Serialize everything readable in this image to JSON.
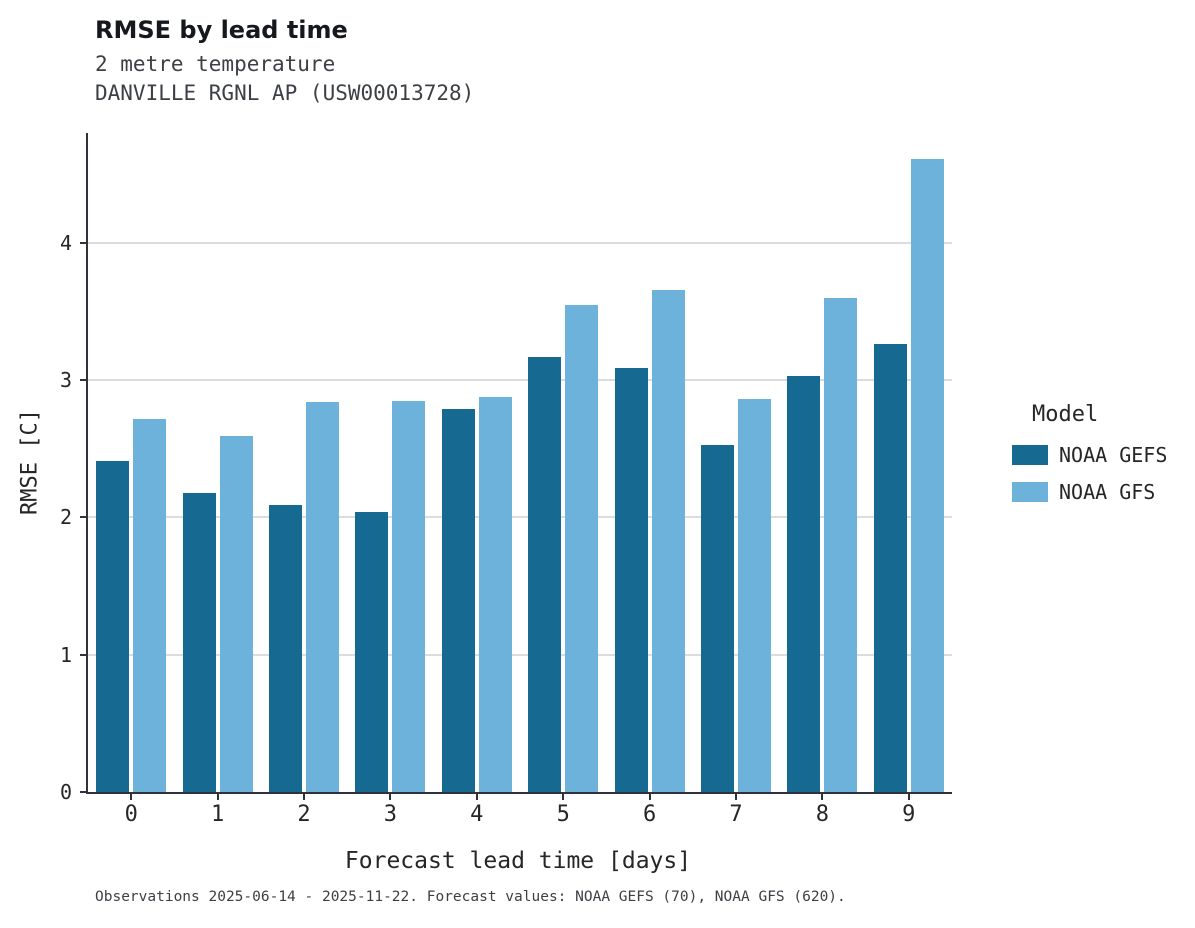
{
  "header": {
    "title": "RMSE by lead time",
    "subtitle_variable": "2 metre temperature",
    "subtitle_station": "DANVILLE RGNL AP (USW00013728)"
  },
  "caption": "Observations 2025-06-14 - 2025-11-22. Forecast values: NOAA GEFS (70), NOAA GFS (620).",
  "legend": {
    "title": "Model"
  },
  "chart_data": {
    "type": "bar",
    "title": "RMSE by lead time",
    "subtitle": "2 metre temperature — DANVILLE RGNL AP (USW00013728)",
    "xlabel": "Forecast lead time [days]",
    "ylabel": "RMSE [C]",
    "categories": [
      "0",
      "1",
      "2",
      "3",
      "4",
      "5",
      "6",
      "7",
      "8",
      "9"
    ],
    "series": [
      {
        "name": "NOAA GEFS",
        "color": "#166a92",
        "values": [
          2.41,
          2.18,
          2.09,
          2.04,
          2.79,
          3.17,
          3.09,
          2.53,
          3.03,
          3.26
        ]
      },
      {
        "name": "NOAA GFS",
        "color": "#6cb2da",
        "values": [
          2.72,
          2.59,
          2.84,
          2.85,
          2.88,
          3.55,
          3.66,
          2.86,
          3.6,
          4.61
        ]
      }
    ],
    "ylim": [
      0,
      4.8
    ],
    "yticks": [
      0,
      1,
      2,
      3,
      4
    ],
    "grid": "horizontal",
    "legend_position": "right"
  }
}
